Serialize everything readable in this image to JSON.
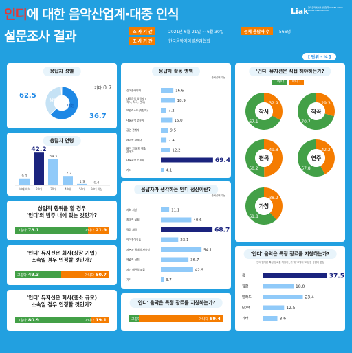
{
  "header": {
    "title_red": "인디",
    "title_rest": "에 대한 음악산업계·대중 인식",
    "title2": "설문조사 결과",
    "meta_period_label": "조 사 기 간",
    "meta_period_value": "2021년 6월 21일 ~ 6월 30일",
    "meta_org_label": "조 사 기 관",
    "meta_org_value": "한국음악레이블산업협회",
    "meta_n_label": "전체 응답자 수",
    "meta_n_value": "566명",
    "logo": "Liak",
    "logo_sub": "한국음악레이블산업협회 KOREA INDIE LABEL ASSOCIATION",
    "unit": "[ 단위 : % ]"
  },
  "colors": {
    "blue": "#1e88e5",
    "orange": "#f57c00",
    "green": "#43a047",
    "navy": "#1a237e",
    "bg": "#22a0e0"
  },
  "chart_data": [
    {
      "id": "gender",
      "type": "pie",
      "title": "응답자 성별",
      "categories": [
        "남성",
        "여성",
        "기타"
      ],
      "values": [
        62.5,
        36.7,
        0.7
      ]
    },
    {
      "id": "age",
      "type": "bar",
      "title": "응답자 연령",
      "categories": [
        "10대 이하",
        "20대",
        "30대",
        "40대",
        "50대",
        "60대 이상"
      ],
      "values": [
        9.0,
        42.2,
        34.3,
        12.2,
        1.9,
        0.4
      ],
      "ylim": [
        0,
        45
      ]
    },
    {
      "id": "activity",
      "type": "bar",
      "title": "응답자 활동 영역",
      "note": "중복선택 가능",
      "categories": [
        "싱어송라이터",
        "대중음악 창작자 (작사, 작곡, 편곡)",
        "보컬리스트(가창자)",
        "대중음악 연주자",
        "공연 관계자",
        "레이블 관계자",
        "음악 외 문화 예술 관계자",
        "대중음악 소비자",
        "기타"
      ],
      "values": [
        16.6,
        18.9,
        7.2,
        15.0,
        9.5,
        7.4,
        12.2,
        69.4,
        4.1
      ],
      "xlim": [
        0,
        75
      ]
    },
    {
      "id": "indie_spirit",
      "type": "bar",
      "title": "응답자가 생각하는 인디 정신이란?",
      "note": "중복선택 가능",
      "categories": [
        "사회 저항",
        "창조적 실험",
        "직접 제작",
        "아마추어리즘",
        "자본과 멜레의 자유성",
        "예술적 성취",
        "자기 내면의 표출",
        "기타"
      ],
      "values": [
        11.1,
        40.6,
        68.7,
        23.1,
        54.1,
        36.7,
        42.9,
        3.7
      ],
      "xlim": [
        0,
        75
      ]
    },
    {
      "id": "direct",
      "type": "pie",
      "title": "'인디' 뮤지션은 직접 해야하는가?",
      "series_names": [
        "그렇다",
        "아니다"
      ],
      "items": [
        {
          "label": "작사",
          "yes": 67.1,
          "no": 32.9
        },
        {
          "label": "작곡",
          "yes": 70.7,
          "no": 29.3
        },
        {
          "label": "편곡",
          "yes": 50.2,
          "no": 49.8
        },
        {
          "label": "연주",
          "yes": 57.8,
          "no": 42.2
        },
        {
          "label": "가창",
          "yes": 61.8,
          "no": 38.2
        }
      ]
    },
    {
      "id": "genre",
      "type": "bar",
      "title": "'인디' 음악은 특정 장르를 지칭하는가?",
      "note": "'인디'음악은 특정 장르를 지칭하는가'에 '그렇다'고 답한 응답자 한정",
      "categories": [
        "록",
        "힙합",
        "발라드",
        "EDM",
        "기타"
      ],
      "values": [
        37.5,
        18.0,
        23.4,
        12.5,
        8.6
      ],
      "xlim": [
        0,
        40
      ]
    },
    {
      "id": "q_commercial",
      "type": "bar",
      "title_l1": "상업적 행위를 할 경우",
      "title_l2": "'인디'의 범주 내에 있는 것인가?",
      "series_names": [
        "그렇다",
        "아니다"
      ],
      "values": [
        78.1,
        21.9
      ]
    },
    {
      "id": "q_big",
      "type": "bar",
      "title_l1": "'인디' 뮤지션은 회사(상장 기업)",
      "title_l2": "소속일 경우 인정할 것인가?",
      "series_names": [
        "그렇다",
        "아니다"
      ],
      "values": [
        49.3,
        50.7
      ]
    },
    {
      "id": "q_small",
      "type": "bar",
      "title_l1": "'인디' 뮤지션은 회사(중소 규모)",
      "title_l2": "소속일 경우 인정할 것인가?",
      "series_names": [
        "그렇다",
        "아니다"
      ],
      "values": [
        80.9,
        19.1
      ]
    },
    {
      "id": "q_genre",
      "type": "bar",
      "title": "'인디' 음악은 특정 장르를 지칭하는가?",
      "series_names": [
        "그렇다",
        "아니다"
      ],
      "values": [
        10.6,
        89.4
      ]
    }
  ]
}
